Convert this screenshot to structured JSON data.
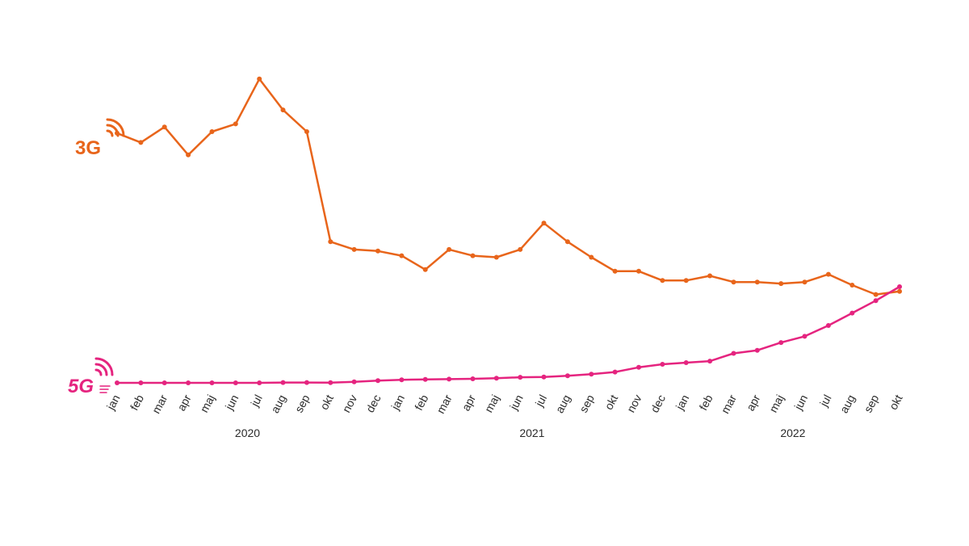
{
  "chart_data": {
    "type": "line",
    "title": "",
    "xlabel": "",
    "ylabel": "",
    "grid": false,
    "legend": "inline-left",
    "categories": [
      "jan",
      "feb",
      "mar",
      "apr",
      "maj",
      "jun",
      "jul",
      "aug",
      "sep",
      "okt",
      "nov",
      "dec",
      "jan",
      "feb",
      "mar",
      "apr",
      "maj",
      "jun",
      "jul",
      "aug",
      "sep",
      "okt",
      "nov",
      "dec",
      "jan",
      "feb",
      "mar",
      "apr",
      "maj",
      "jun",
      "jul",
      "aug",
      "sep",
      "okt"
    ],
    "years": [
      {
        "label": "2020",
        "start": 0,
        "end": 11
      },
      {
        "label": "2021",
        "start": 12,
        "end": 23
      },
      {
        "label": "2022",
        "start": 24,
        "end": 33
      }
    ],
    "ylim": [
      0,
      100
    ],
    "series": [
      {
        "name": "3G",
        "color": "#e8651b",
        "values": [
          80.5,
          77.5,
          82.5,
          73.5,
          81,
          83.5,
          98,
          88,
          81,
          45.5,
          43,
          42.5,
          41,
          36.5,
          43,
          41,
          40.5,
          43,
          51.5,
          45.5,
          40.5,
          36,
          36,
          33,
          33,
          34.5,
          32.5,
          32.5,
          32,
          32.5,
          35,
          31.5,
          28.5,
          29.5
        ]
      },
      {
        "name": "5G",
        "color": "#e5247f",
        "values": [
          0,
          0,
          0,
          0,
          0,
          0,
          0,
          0.1,
          0.1,
          0.05,
          0.3,
          0.7,
          1,
          1.1,
          1.2,
          1.3,
          1.5,
          1.8,
          1.9,
          2.3,
          2.8,
          3.5,
          5,
          6,
          6.5,
          7,
          9.5,
          10.5,
          13,
          15,
          18.5,
          22.5,
          26.5,
          31
        ]
      }
    ]
  }
}
